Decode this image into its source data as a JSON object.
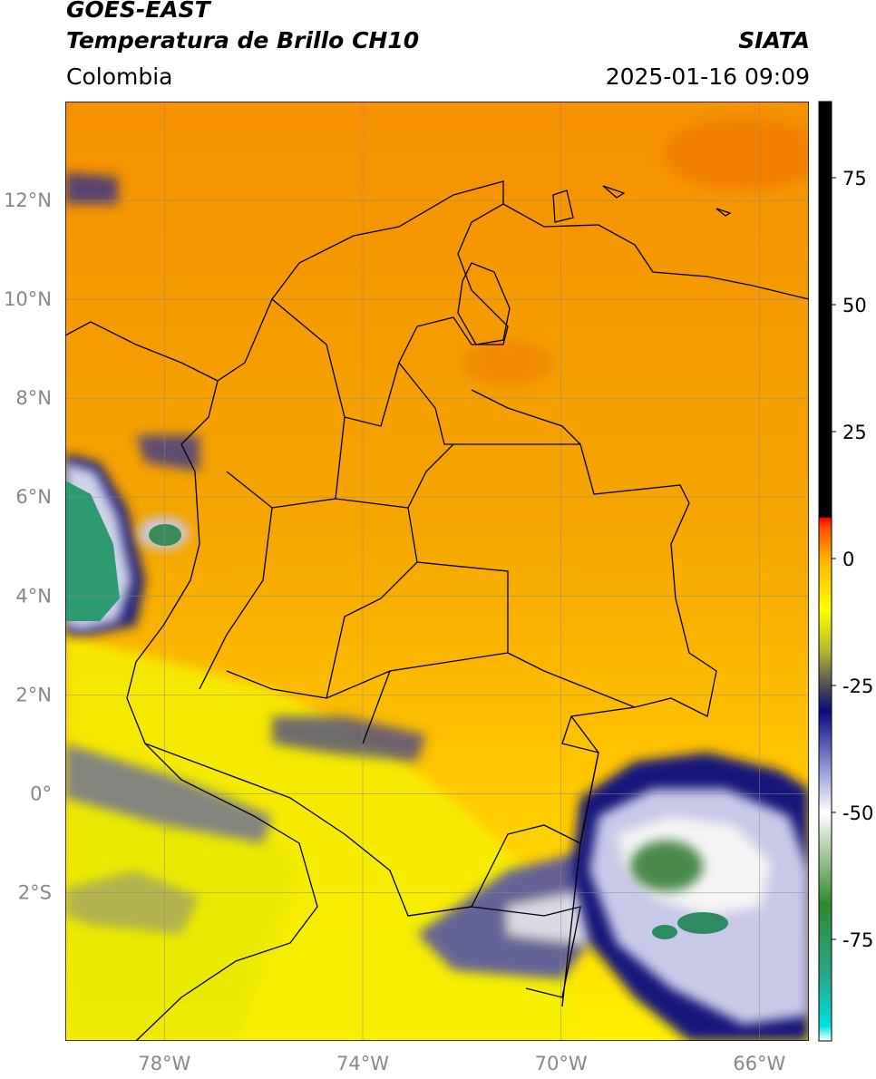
{
  "header": {
    "satellite": "GOES-EAST",
    "product": "Temperatura de Brillo CH10",
    "brand": "SIATA",
    "region": "Colombia",
    "timestamp": "2025-01-16 09:09"
  },
  "map": {
    "lon_range": [
      -80,
      -65
    ],
    "lat_range": [
      -5,
      14
    ],
    "lon_ticks": [
      {
        "value": -78,
        "label": "78°W"
      },
      {
        "value": -74,
        "label": "74°W"
      },
      {
        "value": -70,
        "label": "70°W"
      },
      {
        "value": -66,
        "label": "66°W"
      }
    ],
    "lat_ticks": [
      {
        "value": 12,
        "label": "12°N"
      },
      {
        "value": 10,
        "label": "10°N"
      },
      {
        "value": 8,
        "label": "8°N"
      },
      {
        "value": 6,
        "label": "6°N"
      },
      {
        "value": 4,
        "label": "4°N"
      },
      {
        "value": 2,
        "label": "2°N"
      },
      {
        "value": 0,
        "label": "0°"
      },
      {
        "value": -2,
        "label": "2°S"
      }
    ],
    "background_color": "#f5a300",
    "border_color": "#000000"
  },
  "colorbar": {
    "range": [
      -95,
      90
    ],
    "ticks": [
      {
        "value": 75,
        "label": "75"
      },
      {
        "value": 50,
        "label": "50"
      },
      {
        "value": 25,
        "label": "25"
      },
      {
        "value": 0,
        "label": "0"
      },
      {
        "value": -25,
        "label": "-25"
      },
      {
        "value": -50,
        "label": "-50"
      },
      {
        "value": -75,
        "label": "-75"
      }
    ],
    "stops": [
      {
        "value": -95,
        "color": "#ffffff"
      },
      {
        "value": -92,
        "color": "#00e0e0"
      },
      {
        "value": -82,
        "color": "#2aa58a"
      },
      {
        "value": -68,
        "color": "#2e8b2e"
      },
      {
        "value": -58,
        "color": "#a8c8a0"
      },
      {
        "value": -50,
        "color": "#ffffff"
      },
      {
        "value": -42,
        "color": "#9aa0d8"
      },
      {
        "value": -30,
        "color": "#0a0a80"
      },
      {
        "value": -25,
        "color": "#505050"
      },
      {
        "value": -18,
        "color": "#b8b830"
      },
      {
        "value": -10,
        "color": "#ffff00"
      },
      {
        "value": 0,
        "color": "#ffb000"
      },
      {
        "value": 6,
        "color": "#ff5000"
      },
      {
        "value": 8,
        "color": "#ff0000"
      },
      {
        "value": 8.1,
        "color": "#000000"
      },
      {
        "value": 90,
        "color": "#000000"
      }
    ]
  }
}
